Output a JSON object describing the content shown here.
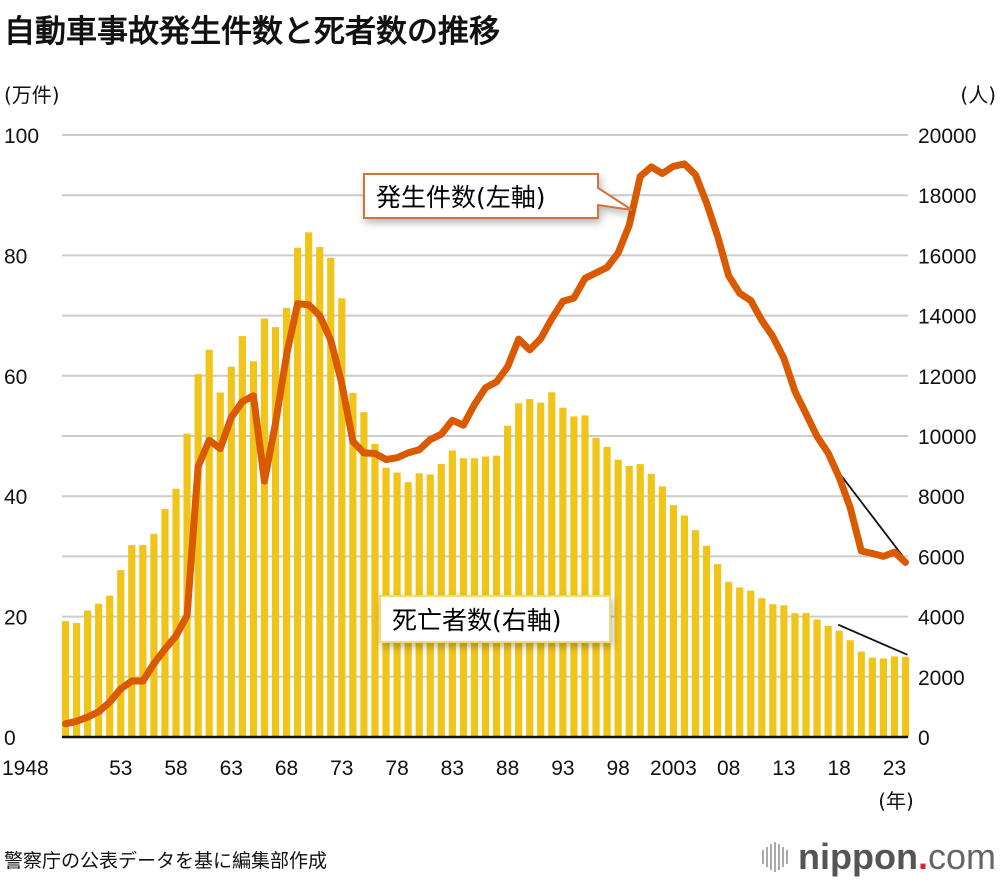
{
  "title": "自動車事故発生件数と死者数の推移",
  "source": "警察庁の公表データを基に編集部作成",
  "logo": {
    "name": "nippon",
    "dot": ".",
    "tld": "com"
  },
  "colors": {
    "bars": "#F0C419",
    "line": "#D95A00",
    "grid": "#CCCCCC",
    "callout_border": "#D2733A",
    "callout_border_deaths": "#F0D060"
  },
  "chart_data": {
    "type": "bar+line",
    "title": "自動車事故発生件数と死者数の推移",
    "xlabel": "(年)",
    "ylabel_left": "(万件)",
    "ylabel_right": "(人)",
    "ylim_left": [
      0,
      100
    ],
    "ylim_right": [
      0,
      20000
    ],
    "left_ticks": [
      "0",
      "20",
      "40",
      "60",
      "80",
      "100"
    ],
    "right_ticks": [
      "0",
      "2000",
      "4000",
      "6000",
      "8000",
      "10000",
      "12000",
      "14000",
      "16000",
      "18000",
      "20000"
    ],
    "x_tick_labels": [
      {
        "year": 1948,
        "label": "1948"
      },
      {
        "year": 1953,
        "label": "53"
      },
      {
        "year": 1958,
        "label": "58"
      },
      {
        "year": 1963,
        "label": "63"
      },
      {
        "year": 1968,
        "label": "68"
      },
      {
        "year": 1973,
        "label": "73"
      },
      {
        "year": 1978,
        "label": "78"
      },
      {
        "year": 1983,
        "label": "83"
      },
      {
        "year": 1988,
        "label": "88"
      },
      {
        "year": 1993,
        "label": "93"
      },
      {
        "year": 1998,
        "label": "98"
      },
      {
        "year": 2003,
        "label": "2003"
      },
      {
        "year": 2008,
        "label": "08"
      },
      {
        "year": 2013,
        "label": "13"
      },
      {
        "year": 2018,
        "label": "18"
      },
      {
        "year": 2023,
        "label": "23"
      }
    ],
    "grid": true,
    "x_start": 1948,
    "x_end": 2024,
    "series": [
      {
        "name": "死亡者数(右軸)",
        "type": "bar",
        "axis": "right",
        "values": [
          3848,
          3790,
          4202,
          4429,
          4696,
          5544,
          6374,
          6379,
          6751,
          7575,
          8248,
          10079,
          12055,
          12865,
          11445,
          12301,
          13318,
          12484,
          13904,
          13618,
          14256,
          16257,
          16765,
          16278,
          15918,
          14574,
          11432,
          10792,
          9734,
          8945,
          8783,
          8466,
          8760,
          8719,
          9073,
          9520,
          9262,
          9261,
          9317,
          9347,
          10344,
          11086,
          11227,
          11109,
          11451,
          10942,
          10649,
          10684,
          9942,
          9640,
          9211,
          9006,
          9066,
          8747,
          8326,
          7702,
          7358,
          6871,
          6352,
          5744,
          5155,
          4968,
          4863,
          4612,
          4411,
          4373,
          4113,
          4117,
          3904,
          3694,
          3532,
          3215,
          2839,
          2636,
          2610,
          2678,
          2663
        ],
        "label": "死亡者数(右軸)"
      },
      {
        "name": "発生件数(左軸)",
        "type": "line",
        "axis": "left",
        "values": [
          2.2,
          2.6,
          3.3,
          4.2,
          5.8,
          8.0,
          9.3,
          9.3,
          12.2,
          14.6,
          16.8,
          20.2,
          44.9,
          49.3,
          47.9,
          53.1,
          55.7,
          56.7,
          42.5,
          52.1,
          63.5,
          72.0,
          71.8,
          70.0,
          65.9,
          58.7,
          49.1,
          47.2,
          47.1,
          46.1,
          46.4,
          47.2,
          47.7,
          49.4,
          50.3,
          52.6,
          51.8,
          55.2,
          58.0,
          59.0,
          61.5,
          66.1,
          64.3,
          66.2,
          69.5,
          72.4,
          72.9,
          76.2,
          77.1,
          78.0,
          80.4,
          85.0,
          93.1,
          94.7,
          93.6,
          94.8,
          95.2,
          93.4,
          88.7,
          83.2,
          76.6,
          73.7,
          72.5,
          69.2,
          66.5,
          62.9,
          57.4,
          53.7,
          49.9,
          47.2,
          43.1,
          38.1,
          30.9,
          30.5,
          30.0,
          30.7,
          29.0
        ],
        "label": "発生件数(左軸)"
      }
    ],
    "annotations": [
      {
        "text": "発生件数(左軸)",
        "target": "line"
      },
      {
        "text": "死亡者数(右軸)",
        "target": "bars"
      }
    ]
  }
}
